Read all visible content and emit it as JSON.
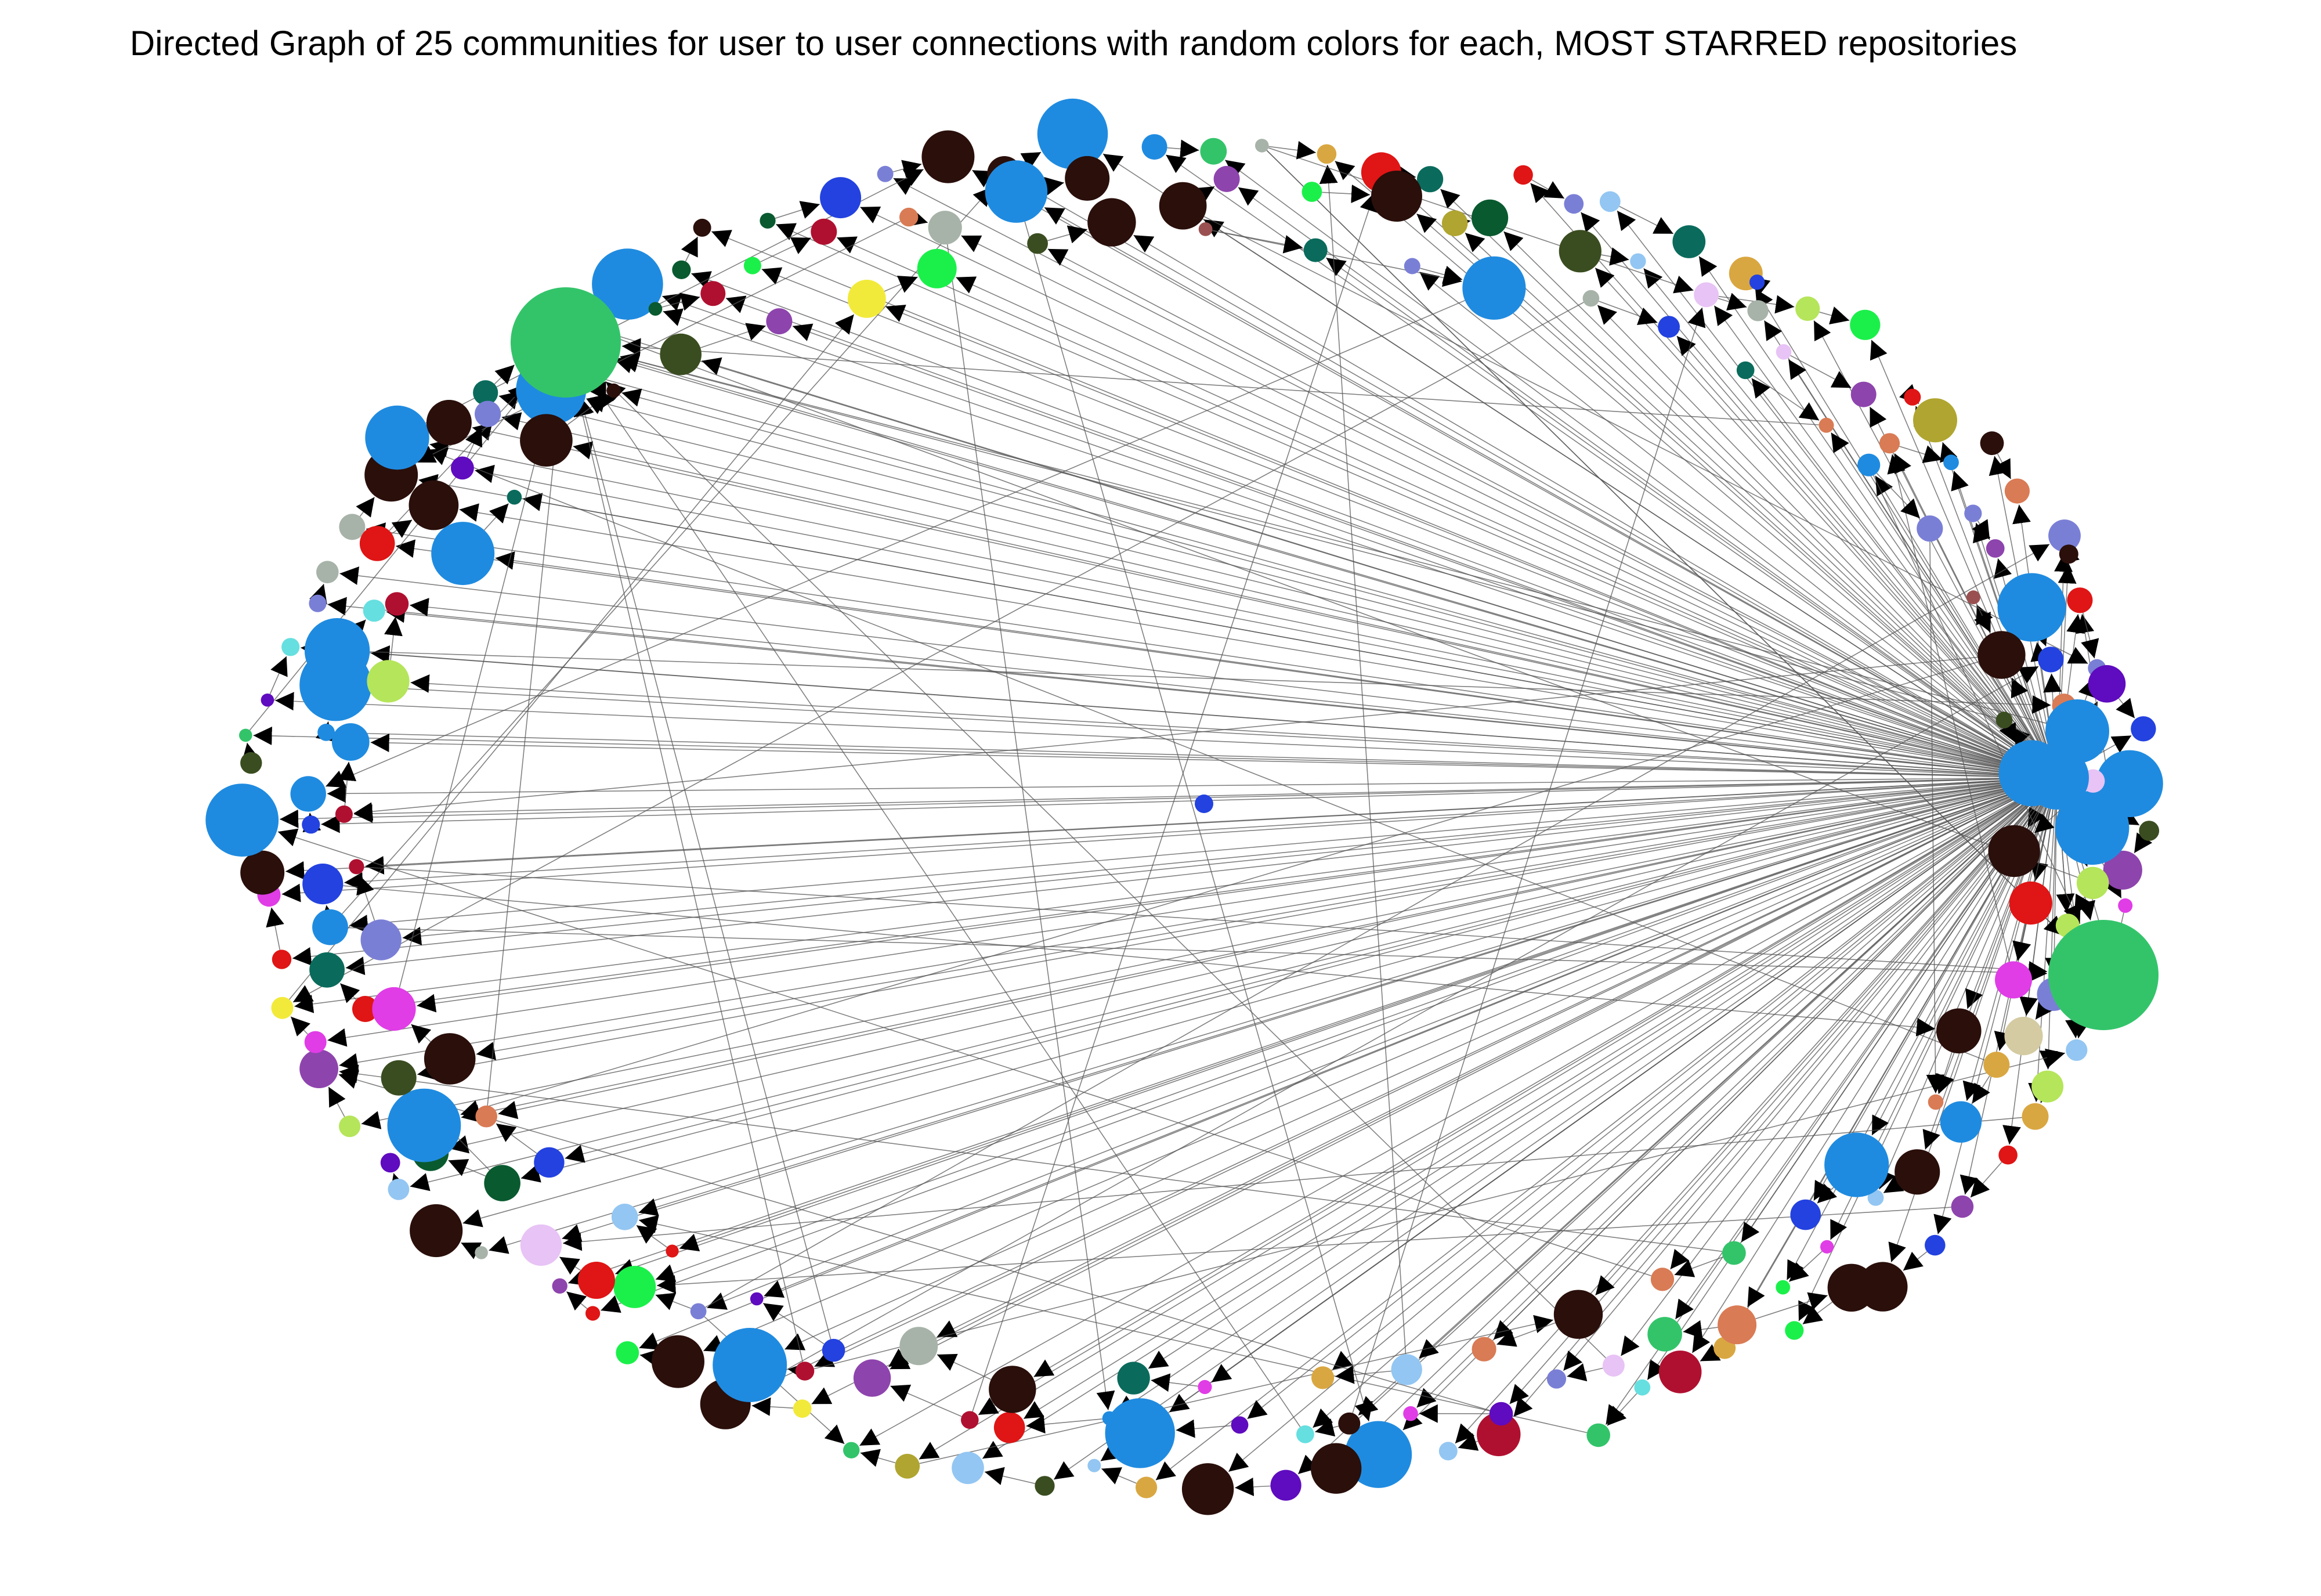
{
  "title": "Directed Graph of 25 communities for user to user connections with random colors for each, MOST STARRED repositories",
  "graph": {
    "directed": true,
    "layout": "circular",
    "community_count": 25,
    "edge_color": "#555555",
    "arrow_color": "#000000",
    "palette": [
      "#1f8be0",
      "#33c46a",
      "#2a0f0b",
      "#b5e55a",
      "#8e44ad",
      "#93c6f2",
      "#d97b55",
      "#1bf04a",
      "#66dfe0",
      "#0a6b5c",
      "#5f0bbf",
      "#b01030",
      "#e03de6",
      "#d9a741",
      "#7a7fd6",
      "#a7b3a9",
      "#3a4d20",
      "#e8c3f5",
      "#0a5a2f",
      "#d4cba2",
      "#e01515",
      "#f2ea3a",
      "#b0a530",
      "#9a5050",
      "#2342e0"
    ],
    "hubs": [
      {
        "id": "H1",
        "community": 0,
        "size": "medium",
        "in_degree": 6,
        "out_degree": 160
      },
      {
        "id": "H2",
        "community": 1,
        "size": "giant",
        "in_degree": 8,
        "out_degree": 0
      },
      {
        "id": "H3",
        "community": 1,
        "size": "giant",
        "in_degree": 4,
        "out_degree": 0
      },
      {
        "id": "H4",
        "community": 0,
        "size": "medium",
        "in_degree": 5,
        "out_degree": 12
      }
    ],
    "node_count": 230,
    "isolated_nodes": 1
  }
}
